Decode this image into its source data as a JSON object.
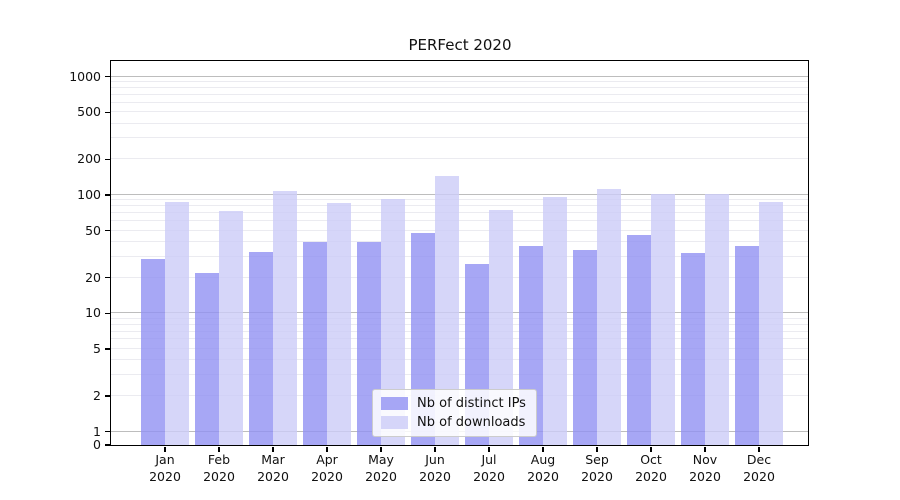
{
  "chart_data": {
    "type": "bar",
    "title": "PERFect 2020",
    "x": {
      "categories": [
        "Jan",
        "Feb",
        "Mar",
        "Apr",
        "May",
        "Jun",
        "Jul",
        "Aug",
        "Sep",
        "Oct",
        "Nov",
        "Dec"
      ],
      "year_label": "2020"
    },
    "series": [
      {
        "name": "Nb of distinct IPs",
        "color": "rgba(145,145,242,0.8)",
        "values": [
          29,
          22,
          33,
          40,
          40,
          48,
          26,
          37,
          34,
          46,
          32,
          37
        ]
      },
      {
        "name": "Nb of downloads",
        "color": "rgba(204,204,248,0.8)",
        "values": [
          87,
          73,
          108,
          86,
          93,
          145,
          75,
          96,
          113,
          102,
          102,
          87
        ]
      }
    ],
    "yscale": "symlog",
    "ylim": [
      0,
      1370
    ],
    "y_ticks": [
      1000,
      500,
      200,
      100,
      50,
      20,
      10,
      5,
      2,
      1,
      0
    ],
    "grid": {
      "enabled": true,
      "major_color": "#bdbdbd",
      "minor_color": "#ebebf0"
    },
    "legend_position": "lower center",
    "colors": {
      "axis": "#000000",
      "legend_border": "#cccccc",
      "text": "#111111"
    }
  }
}
